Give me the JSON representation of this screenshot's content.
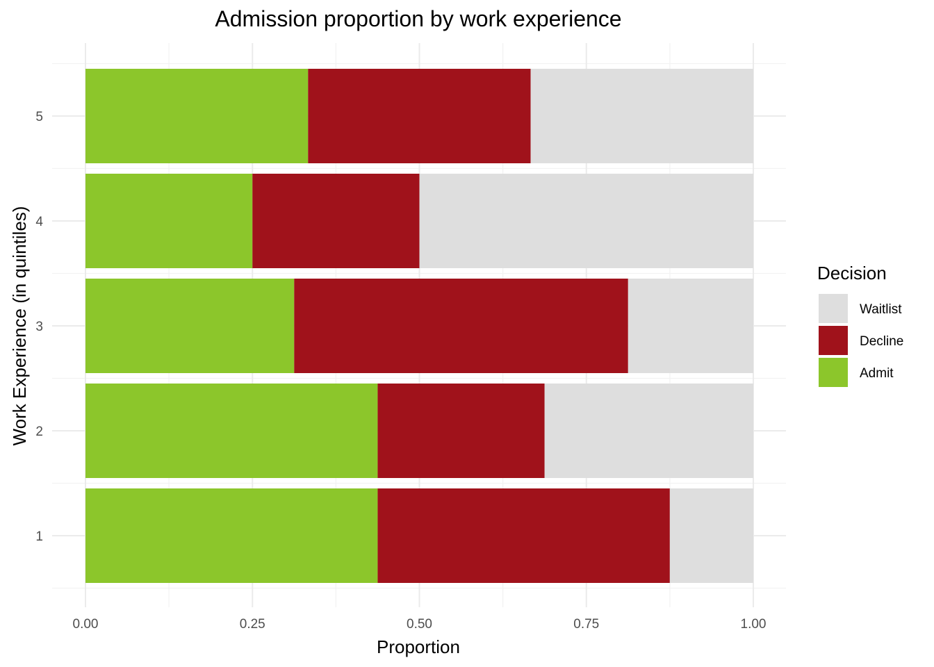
{
  "chart_data": {
    "type": "bar",
    "orientation": "horizontal",
    "stacked": true,
    "title": "Admission proportion by work experience",
    "xlabel": "Proportion",
    "ylabel": "Work Experience (in quintiles)",
    "categories": [
      "1",
      "2",
      "3",
      "4",
      "5"
    ],
    "xlim": [
      0,
      1
    ],
    "xticks": [
      "0.00",
      "0.25",
      "0.50",
      "0.75",
      "1.00"
    ],
    "series": [
      {
        "name": "Admit",
        "color": "#8cc62b",
        "values": [
          0.4375,
          0.4375,
          0.3125,
          0.25,
          0.3333
        ]
      },
      {
        "name": "Decline",
        "color": "#a0121b",
        "values": [
          0.4375,
          0.25,
          0.5,
          0.25,
          0.3333
        ]
      },
      {
        "name": "Waitlist",
        "color": "#dedede",
        "values": [
          0.125,
          0.3125,
          0.1875,
          0.5,
          0.3334
        ]
      }
    ],
    "legend": {
      "title": "Decision",
      "position": "right",
      "order": [
        "Waitlist",
        "Decline",
        "Admit"
      ]
    },
    "grid": true
  }
}
